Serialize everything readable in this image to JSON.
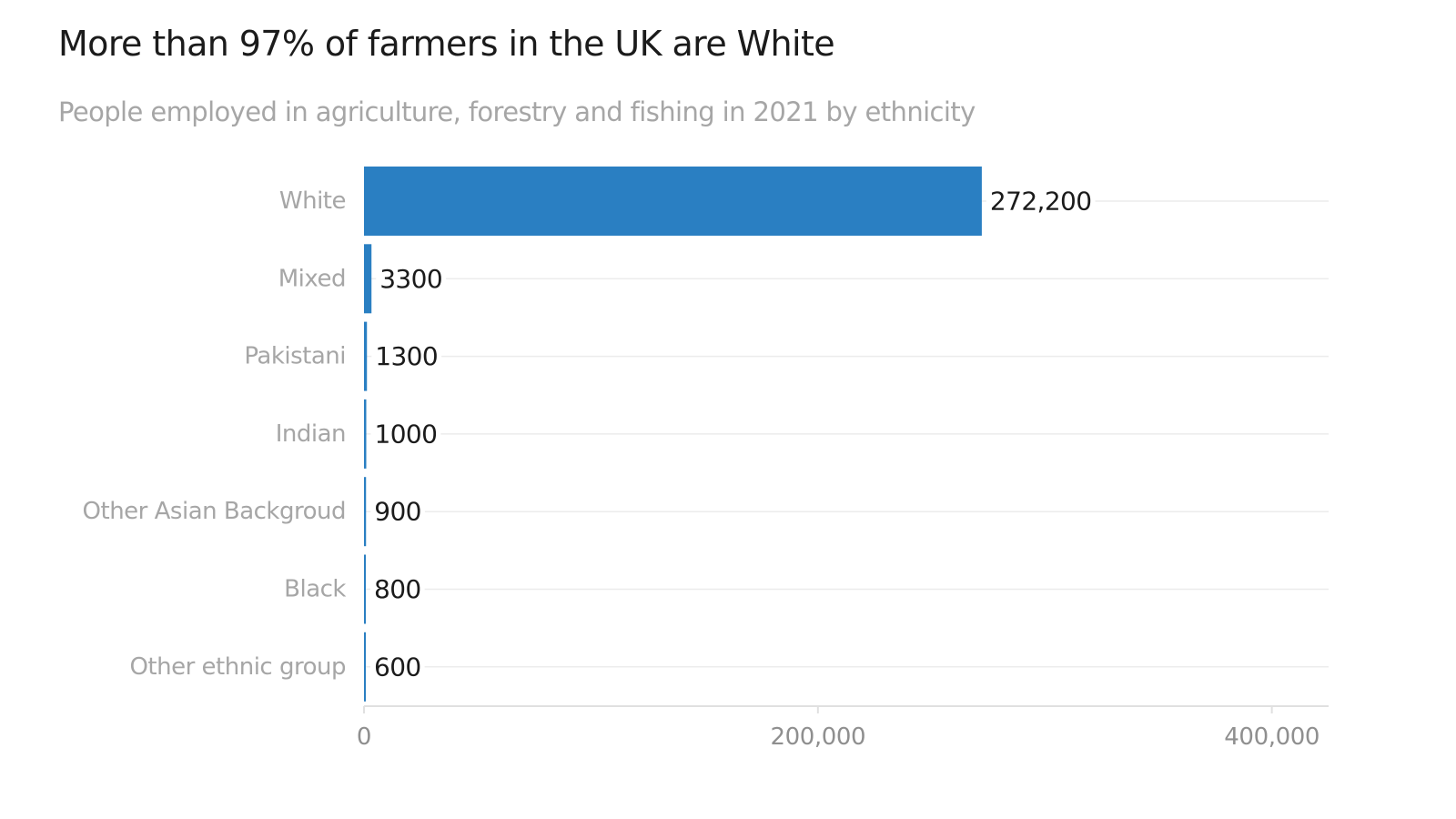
{
  "chart_data": {
    "type": "bar",
    "orientation": "horizontal",
    "title": "More than 97% of farmers in the UK are White",
    "subtitle": "People employed in agriculture, forestry and fishing in 2021 by ethnicity",
    "xlabel": "",
    "ylabel": "",
    "categories": [
      "White",
      "Mixed",
      "Pakistani",
      "Indian",
      "Other Asian Backgroud",
      "Black",
      "Other ethnic group"
    ],
    "values": [
      272200,
      3300,
      1300,
      1000,
      900,
      800,
      600
    ],
    "value_labels": [
      "272,200",
      "3300",
      "1300",
      "1000",
      "900",
      "800",
      "600"
    ],
    "xlim": [
      0,
      425000
    ],
    "x_ticks": [
      0,
      200000,
      400000
    ],
    "x_tick_labels": [
      "0",
      "200,000",
      "400,000"
    ],
    "grid": true,
    "legend": "none",
    "colors": {
      "bar": "#2a7fc2",
      "grid": "#ececec",
      "axis": "#e0e0e0"
    }
  }
}
